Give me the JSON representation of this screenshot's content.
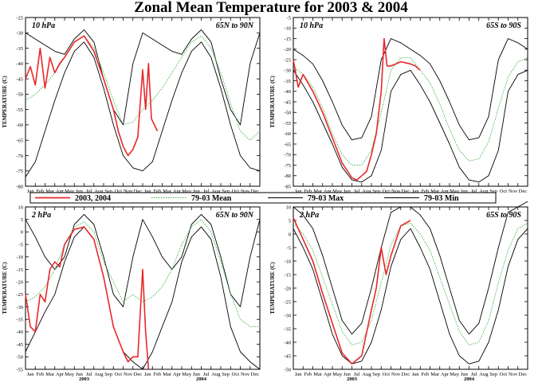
{
  "title": "Zonal Mean Temperature for 2003 & 2004",
  "legend": {
    "items": [
      {
        "label": "2003, 2004",
        "color": "#e8282b",
        "dash": "solid"
      },
      {
        "label": "79-03 Mean",
        "color": "#3cb043",
        "dash": "dotted"
      },
      {
        "label": "79-03 Max",
        "color": "#000000",
        "dash": "solid"
      },
      {
        "label": "79-03 Min",
        "color": "#000000",
        "dash": "solid"
      }
    ]
  },
  "months": [
    "Jan",
    "Feb",
    "Mar",
    "Apr",
    "May",
    "Jun",
    "Jul",
    "Aug",
    "Sep",
    "Oct",
    "Nov",
    "Dec",
    "Jan",
    "Feb",
    "Mar",
    "Apr",
    "May",
    "Jun",
    "Jul",
    "Aug",
    "Sep",
    "Oct",
    "Nov",
    "Dec"
  ],
  "years": [
    "2003",
    "2004"
  ],
  "chart_data": [
    {
      "type": "line",
      "pressure": "10 hPa",
      "region": "65N to 90N",
      "ylabel": "TEMPERATURE (C)",
      "ylim": [
        -80,
        -25
      ],
      "yticks": [
        -80,
        -75,
        -70,
        -65,
        -60,
        -55,
        -50,
        -45,
        -40,
        -35,
        -30,
        -25
      ],
      "x_unit": "month index from Jan 2003",
      "series": [
        {
          "name": "79-03 Max",
          "x": [
            0,
            1,
            2,
            3,
            4,
            5,
            6,
            7,
            8,
            9,
            10,
            11,
            12,
            13,
            14,
            15,
            16,
            17,
            18,
            19,
            20,
            21,
            22,
            23,
            24
          ],
          "values": [
            -30,
            -32,
            -34,
            -36,
            -37,
            -32,
            -29,
            -33,
            -45,
            -55,
            -60,
            -40,
            -30,
            -32,
            -34,
            -36,
            -37,
            -32,
            -29,
            -33,
            -45,
            -55,
            -60,
            -40,
            -30
          ]
        },
        {
          "name": "79-03 Mean",
          "x": [
            0,
            1,
            2,
            3,
            4,
            5,
            6,
            7,
            8,
            9,
            10,
            11,
            12,
            13,
            14,
            15,
            16,
            17,
            18,
            19,
            20,
            21,
            22,
            23,
            24
          ],
          "values": [
            -52,
            -50,
            -47,
            -43,
            -38,
            -33,
            -31,
            -35,
            -43,
            -52,
            -60,
            -59,
            -55,
            -52,
            -48,
            -43,
            -38,
            -33,
            -31,
            -35,
            -43,
            -53,
            -62,
            -65,
            -62
          ]
        },
        {
          "name": "79-03 Min",
          "x": [
            0,
            1,
            2,
            3,
            4,
            5,
            6,
            7,
            8,
            9,
            10,
            11,
            12,
            13,
            14,
            15,
            16,
            17,
            18,
            19,
            20,
            21,
            22,
            23,
            24
          ],
          "values": [
            -77,
            -72,
            -62,
            -52,
            -43,
            -36,
            -33,
            -38,
            -48,
            -60,
            -70,
            -74,
            -75,
            -72,
            -62,
            -52,
            -43,
            -36,
            -33,
            -38,
            -48,
            -60,
            -70,
            -74,
            -75
          ]
        },
        {
          "name": "2003, 2004",
          "x": [
            0,
            0.5,
            1,
            1.5,
            2,
            2.5,
            3,
            3.5,
            4,
            5,
            6,
            7,
            8,
            9,
            9.5,
            10,
            10.5,
            11,
            11.5,
            12,
            12.3,
            12.6,
            12.9,
            13.2,
            13.5
          ],
          "values": [
            -45,
            -41,
            -47,
            -35,
            -48,
            -38,
            -43,
            -40,
            -38,
            -33,
            -31,
            -36,
            -45,
            -55,
            -62,
            -67,
            -70,
            -68,
            -64,
            -42,
            -55,
            -40,
            -58,
            -60,
            -62
          ]
        }
      ]
    },
    {
      "type": "line",
      "pressure": "10 hPa",
      "region": "65S to 90S",
      "ylabel": "TEMPERATURE (C)",
      "ylim": [
        -85,
        -5
      ],
      "yticks": [
        -85,
        -80,
        -75,
        -70,
        -65,
        -60,
        -55,
        -50,
        -45,
        -40,
        -35,
        -30,
        -25,
        -20,
        -15,
        -10,
        -5
      ],
      "x_unit": "month index from Jan 2003",
      "series": [
        {
          "name": "79-03 Max",
          "x": [
            0,
            1,
            2,
            3,
            4,
            5,
            6,
            7,
            8,
            9,
            10,
            11,
            12,
            13,
            14,
            15,
            16,
            17,
            18,
            19,
            20,
            21,
            22,
            23,
            24
          ],
          "values": [
            -20,
            -23,
            -27,
            -35,
            -45,
            -56,
            -63,
            -62,
            -52,
            -25,
            -15,
            -17,
            -20,
            -23,
            -27,
            -35,
            -45,
            -56,
            -63,
            -62,
            -52,
            -25,
            -15,
            -17,
            -20
          ]
        },
        {
          "name": "79-03 Mean",
          "x": [
            0,
            1,
            2,
            3,
            4,
            5,
            6,
            7,
            8,
            9,
            10,
            11,
            12,
            13,
            14,
            15,
            16,
            17,
            18,
            19,
            20,
            21,
            22,
            23,
            24
          ],
          "values": [
            -28,
            -32,
            -38,
            -48,
            -60,
            -70,
            -75,
            -75,
            -68,
            -50,
            -30,
            -24,
            -24,
            -30,
            -36,
            -46,
            -58,
            -68,
            -73,
            -72,
            -64,
            -48,
            -33,
            -26,
            -24
          ]
        },
        {
          "name": "79-03 Min",
          "x": [
            0,
            1,
            2,
            3,
            4,
            5,
            6,
            7,
            8,
            9,
            10,
            11,
            12,
            13,
            14,
            15,
            16,
            17,
            18,
            19,
            20,
            21,
            22,
            23,
            24
          ],
          "values": [
            -30,
            -37,
            -45,
            -55,
            -65,
            -76,
            -82,
            -83,
            -80,
            -68,
            -40,
            -32,
            -30,
            -37,
            -45,
            -55,
            -65,
            -76,
            -82,
            -83,
            -80,
            -68,
            -40,
            -32,
            -30
          ]
        },
        {
          "name": "2003, 2004",
          "x": [
            0,
            0.5,
            1,
            2,
            3,
            4,
            5,
            6,
            6.5,
            7,
            7.5,
            8,
            8.5,
            9,
            9.3,
            9.6,
            10,
            11,
            12,
            12.5,
            13
          ],
          "values": [
            -25,
            -38,
            -32,
            -40,
            -50,
            -62,
            -74,
            -81,
            -82,
            -80,
            -78,
            -70,
            -60,
            -40,
            -15,
            -28,
            -28,
            -26,
            -27,
            -28,
            -30
          ]
        }
      ]
    },
    {
      "type": "line",
      "pressure": "2 hPa",
      "region": "65N to 90N",
      "ylabel": "TEMPERATURE (C)",
      "ylim": [
        -55,
        10
      ],
      "yticks": [
        -55,
        -50,
        -45,
        -40,
        -35,
        -30,
        -25,
        -20,
        -15,
        -10,
        -5,
        0,
        5,
        10
      ],
      "x_unit": "month index from Jan 2003",
      "series": [
        {
          "name": "79-03 Max",
          "x": [
            0,
            1,
            2,
            3,
            4,
            5,
            6,
            7,
            8,
            9,
            10,
            11,
            12,
            13,
            14,
            15,
            16,
            17,
            18,
            19,
            20,
            21,
            22,
            23,
            24
          ],
          "values": [
            5,
            -2,
            -10,
            -15,
            -10,
            3,
            7,
            3,
            -10,
            -25,
            -30,
            -10,
            5,
            -2,
            -10,
            -15,
            -10,
            3,
            7,
            3,
            -10,
            -25,
            -30,
            -10,
            5
          ]
        },
        {
          "name": "79-03 Mean",
          "x": [
            0,
            1,
            2,
            3,
            4,
            5,
            6,
            7,
            8,
            9,
            10,
            11,
            12,
            13,
            14,
            15,
            16,
            17,
            18,
            19,
            20,
            21,
            22,
            23,
            24
          ],
          "values": [
            -28,
            -26,
            -22,
            -15,
            -5,
            2,
            4,
            0,
            -12,
            -20,
            -28,
            -25,
            -28,
            -26,
            -22,
            -15,
            -5,
            2,
            5,
            0,
            -12,
            -25,
            -35,
            -38,
            -38
          ]
        },
        {
          "name": "79-03 Min",
          "x": [
            0,
            1,
            2,
            3,
            4,
            5,
            6,
            7,
            8,
            9,
            10,
            11,
            12,
            13,
            14,
            15,
            16,
            17,
            18,
            19,
            20,
            21,
            22,
            23,
            24
          ],
          "values": [
            -48,
            -40,
            -32,
            -25,
            -12,
            -2,
            2,
            -3,
            -18,
            -38,
            -48,
            -52,
            -55,
            -48,
            -38,
            -28,
            -12,
            -2,
            2,
            -3,
            -18,
            -38,
            -48,
            -52,
            -55
          ]
        },
        {
          "name": "2003, 2004",
          "x": [
            0,
            0.5,
            1,
            1.5,
            2,
            2.5,
            3,
            3.5,
            4,
            5,
            6,
            7,
            8,
            9,
            10,
            10.5,
            11,
            11.5,
            12,
            12.3,
            12.6
          ],
          "values": [
            -25,
            -38,
            -40,
            -25,
            -28,
            -15,
            -12,
            -14,
            -5,
            1,
            2,
            -3,
            -18,
            -38,
            -48,
            -52,
            -50,
            -50,
            -15,
            -40,
            -55
          ]
        }
      ]
    },
    {
      "type": "line",
      "pressure": "2 hPa",
      "region": "65S to 90S",
      "ylabel": "TEMPERATURE (C)",
      "ylim": [
        -50,
        10
      ],
      "yticks": [
        -50,
        -45,
        -40,
        -35,
        -30,
        -25,
        -20,
        -15,
        -10,
        -5,
        0,
        5,
        10
      ],
      "x_unit": "month index from Jan 2003",
      "series": [
        {
          "name": "79-03 Max",
          "x": [
            0,
            1,
            2,
            3,
            4,
            5,
            6,
            7,
            8,
            9,
            10,
            11,
            12,
            13,
            14,
            15,
            16,
            17,
            18,
            19,
            20,
            21,
            22,
            23,
            24
          ],
          "values": [
            10,
            7,
            2,
            -8,
            -20,
            -32,
            -37,
            -33,
            -20,
            -5,
            8,
            10,
            10,
            7,
            2,
            -8,
            -20,
            -32,
            -37,
            -33,
            -20,
            -5,
            8,
            10,
            12
          ]
        },
        {
          "name": "79-03 Mean",
          "x": [
            0,
            1,
            2,
            3,
            4,
            5,
            6,
            7,
            8,
            9,
            10,
            11,
            12,
            13,
            14,
            15,
            16,
            17,
            18,
            19,
            20,
            21,
            22,
            23,
            24
          ],
          "values": [
            4,
            0,
            -6,
            -16,
            -26,
            -36,
            -41,
            -40,
            -32,
            -18,
            -4,
            3,
            4,
            0,
            -6,
            -16,
            -26,
            -36,
            -41,
            -40,
            -32,
            -18,
            -6,
            2,
            4
          ]
        },
        {
          "name": "79-03 Min",
          "x": [
            0,
            1,
            2,
            3,
            4,
            5,
            6,
            7,
            8,
            9,
            10,
            11,
            12,
            13,
            14,
            15,
            16,
            17,
            18,
            19,
            20,
            21,
            22,
            23,
            24
          ],
          "values": [
            2,
            -5,
            -13,
            -25,
            -37,
            -45,
            -48,
            -47,
            -40,
            -28,
            -12,
            -2,
            2,
            -5,
            -13,
            -25,
            -37,
            -45,
            -48,
            -47,
            -40,
            -28,
            -12,
            -2,
            2
          ]
        },
        {
          "name": "2003, 2004",
          "x": [
            0,
            0.5,
            1,
            2,
            3,
            4,
            5,
            6,
            7,
            8,
            8.5,
            9,
            9.5,
            10,
            11,
            12
          ],
          "values": [
            6,
            2,
            -2,
            -10,
            -22,
            -33,
            -44,
            -48,
            -45,
            -28,
            -20,
            -5,
            -15,
            -8,
            3,
            5
          ]
        }
      ]
    }
  ]
}
